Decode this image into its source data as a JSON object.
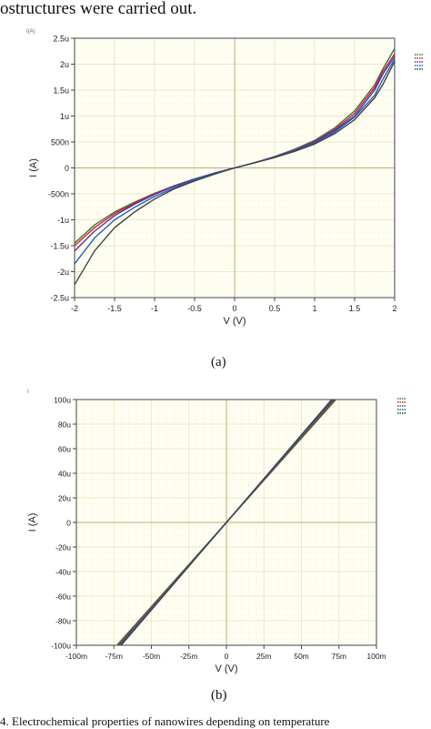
{
  "page": {
    "top_text": "ostructures were carried out.",
    "bottom_text": "4. Electrochemical properties of nanowires depending on temperature"
  },
  "figures": [
    {
      "caption": "(a)",
      "corner_label": "I(A)"
    },
    {
      "caption": "(b)",
      "corner_label": "I"
    }
  ],
  "chart_data": [
    {
      "type": "line",
      "title": "",
      "xlabel": "V (V)",
      "ylabel": "I (A)",
      "xlim": [
        -2,
        2
      ],
      "ylim": [
        -2.5e-06,
        2.5e-06
      ],
      "x_ticks": [
        -2,
        -1.5,
        -1,
        -0.5,
        0,
        0.5,
        1,
        1.5,
        2
      ],
      "x_tick_labels": [
        "-2",
        "-1.5",
        "-1",
        "-0.5",
        "0",
        "0.5",
        "1",
        "1.5",
        "2"
      ],
      "y_ticks": [
        2.5e-06,
        2e-06,
        1.5e-06,
        1e-06,
        5e-07,
        0,
        -5e-07,
        -1e-06,
        -1.5e-06,
        -2e-06,
        -2.5e-06
      ],
      "y_tick_labels": [
        "2.5u",
        "2u",
        "1.5u",
        "1u",
        "500n",
        "0",
        "-500n",
        "-1u",
        "-1.5u",
        "-2u",
        "-2.5u"
      ],
      "grid": true,
      "x": [
        -2,
        -1.75,
        -1.5,
        -1.25,
        -1,
        -0.75,
        -0.5,
        -0.25,
        0,
        0.25,
        0.5,
        0.75,
        1,
        1.25,
        1.5,
        1.75,
        1.85,
        2
      ],
      "series": [
        {
          "color": "#2e7d32",
          "values": [
            -1.45e-06,
            -1.1e-06,
            -8.5e-07,
            -6.6e-07,
            -4.9e-07,
            -3.4e-07,
            -2.1e-07,
            -1e-07,
            0,
            1e-07,
            2.2e-07,
            3.6e-07,
            5.3e-07,
            7.7e-07,
            1.1e-06,
            1.6e-06,
            1.9e-06,
            2.3e-06
          ]
        },
        {
          "color": "#c62828",
          "values": [
            -1.5e-06,
            -1.15e-06,
            -8.8e-07,
            -6.8e-07,
            -5e-07,
            -3.5e-07,
            -2.2e-07,
            -1e-07,
            0,
            1e-07,
            2.1e-07,
            3.5e-07,
            5.1e-07,
            7.4e-07,
            1.05e-06,
            1.55e-06,
            1.85e-06,
            2.2e-06
          ]
        },
        {
          "color": "#7b1fa2",
          "values": [
            -1.6e-06,
            -1.22e-06,
            -9.2e-07,
            -7e-07,
            -5.1e-07,
            -3.5e-07,
            -2.2e-07,
            -1e-07,
            0,
            1e-07,
            2.1e-07,
            3.4e-07,
            5e-07,
            7.2e-07,
            1e-06,
            1.5e-06,
            1.8e-06,
            2.15e-06
          ]
        },
        {
          "color": "#1565c0",
          "values": [
            -1.85e-06,
            -1.35e-06,
            -1e-06,
            -7.6e-07,
            -5.5e-07,
            -3.8e-07,
            -2.3e-07,
            -1.1e-07,
            0,
            1e-07,
            2e-07,
            3.3e-07,
            4.8e-07,
            6.9e-07,
            9.8e-07,
            1.4e-06,
            1.7e-06,
            2.1e-06
          ]
        },
        {
          "color": "#37474f",
          "values": [
            -2.25e-06,
            -1.6e-06,
            -1.15e-06,
            -8.5e-07,
            -6e-07,
            -4e-07,
            -2.5e-07,
            -1.2e-07,
            0,
            1e-07,
            2e-07,
            3.2e-07,
            4.6e-07,
            6.6e-07,
            9.3e-07,
            1.35e-06,
            1.6e-06,
            2.05e-06
          ]
        }
      ]
    },
    {
      "type": "line",
      "title": "",
      "xlabel": "V (V)",
      "ylabel": "I (A)",
      "xlim": [
        -0.1,
        0.1
      ],
      "ylim": [
        -0.0001,
        0.0001
      ],
      "x_ticks": [
        -0.1,
        -0.075,
        -0.05,
        -0.025,
        0,
        0.025,
        0.05,
        0.075,
        0.1
      ],
      "x_tick_labels": [
        "-100m",
        "-75m",
        "-50m",
        "-25m",
        "0",
        "25m",
        "50m",
        "75m",
        "100m"
      ],
      "y_ticks": [
        0.0001,
        8e-05,
        6e-05,
        4e-05,
        2e-05,
        0,
        -2e-05,
        -4e-05,
        -6e-05,
        -8e-05,
        -0.0001
      ],
      "y_tick_labels": [
        "100u",
        "80u",
        "60u",
        "40u",
        "20u",
        "0",
        "-20u",
        "-40u",
        "-60u",
        "-80u",
        "-100u"
      ],
      "grid": true,
      "x": [
        -0.073,
        0.073
      ],
      "series": [
        {
          "color": "#2e7d32",
          "values": [
            -0.0001,
            0.0001
          ]
        },
        {
          "color": "#c62828",
          "values": [
            -0.000101,
            0.000101
          ]
        },
        {
          "color": "#6d4c41",
          "values": [
            -0.000102,
            0.000102
          ]
        },
        {
          "color": "#1565c0",
          "values": [
            -0.000103,
            0.000103
          ]
        },
        {
          "color": "#37474f",
          "values": [
            -0.000104,
            0.000104
          ]
        }
      ]
    }
  ]
}
